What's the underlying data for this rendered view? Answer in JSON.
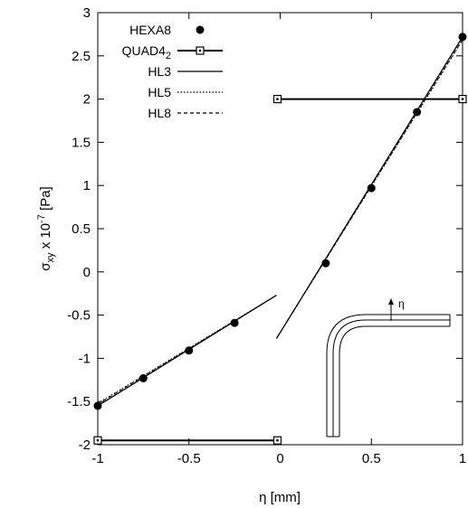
{
  "chart_data": {
    "type": "line",
    "xlabel": "η [mm]",
    "ylabel_main": "σ",
    "ylabel_sub": "xy",
    "ylabel_mid": " x 10",
    "ylabel_sup": "-7",
    "ylabel_unit": " [Pa]",
    "xlim": [
      -1,
      1
    ],
    "ylim": [
      -2,
      3
    ],
    "xticks": [
      -1,
      -0.5,
      0,
      0.5,
      1
    ],
    "xtick_labels": [
      "-1",
      "-0.5",
      "0",
      "0.5",
      "1"
    ],
    "yticks": [
      -2,
      -1.5,
      -1,
      -0.5,
      0,
      0.5,
      1,
      1.5,
      2,
      2.5,
      3
    ],
    "ytick_labels": [
      "-2",
      "-1.5",
      "-1",
      "-0.5",
      "0",
      "0.5",
      "1",
      "1.5",
      "2",
      "2.5",
      "3"
    ],
    "grid": false,
    "legend_position": "top-left",
    "series": [
      {
        "name": "HEXA8",
        "style": "points-filled-circle",
        "x": [
          -1,
          -0.75,
          -0.5,
          -0.25,
          0.25,
          0.5,
          0.75,
          1
        ],
        "y": [
          -1.55,
          -1.23,
          -0.91,
          -0.59,
          0.1,
          0.97,
          1.85,
          2.72
        ]
      },
      {
        "name": "QUAD4",
        "name_sub": "2",
        "style": "line-open-square",
        "segments": [
          {
            "x": [
              -1,
              -0.015
            ],
            "y": [
              -1.95,
              -1.95
            ]
          },
          {
            "x": [
              -0.015,
              1
            ],
            "y": [
              2.0,
              2.0
            ]
          }
        ]
      },
      {
        "name": "HL3",
        "style": "solid",
        "segments": [
          {
            "x": [
              -1,
              -0.02
            ],
            "y": [
              -1.55,
              -0.27
            ]
          },
          {
            "x": [
              -0.02,
              1
            ],
            "y": [
              -0.77,
              2.72
            ]
          }
        ]
      },
      {
        "name": "HL5",
        "style": "dotted",
        "segments": [
          {
            "x": [
              -1,
              -0.02
            ],
            "y": [
              -1.52,
              -0.27
            ]
          },
          {
            "x": [
              -0.02,
              1
            ],
            "y": [
              -0.77,
              2.68
            ]
          }
        ]
      },
      {
        "name": "HL8",
        "style": "dashed",
        "segments": [
          {
            "x": [
              -1,
              -0.02
            ],
            "y": [
              -1.53,
              -0.27
            ]
          },
          {
            "x": [
              -0.02,
              1
            ],
            "y": [
              -0.77,
              2.69
            ]
          }
        ]
      }
    ],
    "inset_label": "η"
  }
}
